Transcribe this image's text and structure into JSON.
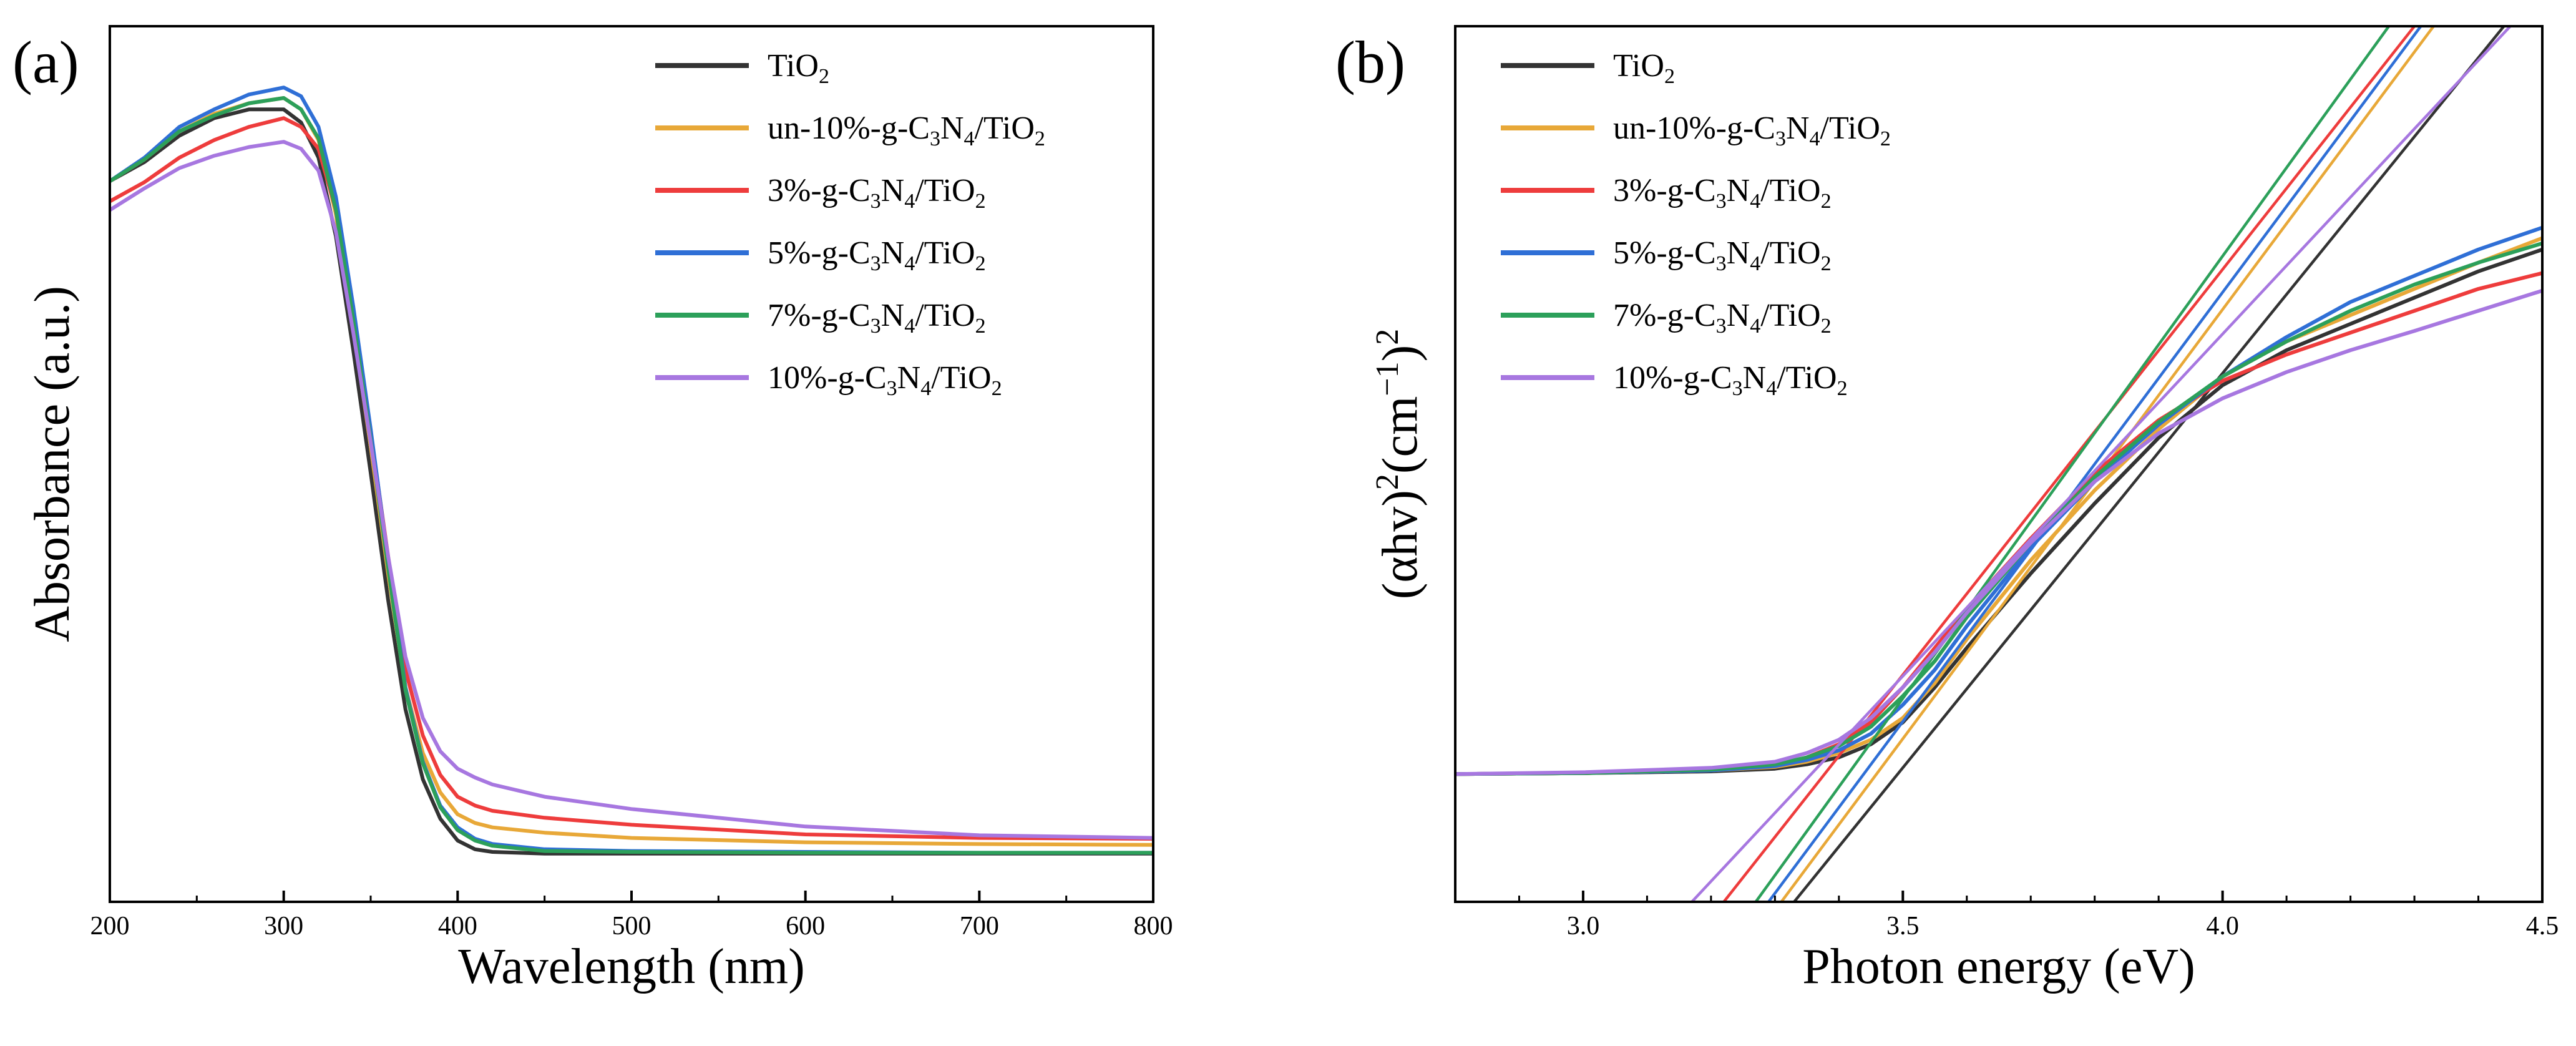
{
  "chart_data": [
    {
      "type": "line",
      "panel_label": "(a)",
      "title": "",
      "xlabel": "Wavelength (nm)",
      "ylabel": "Absorbance (a.u.)",
      "xlim": [
        200,
        800
      ],
      "ylim": [
        0,
        1.0
      ],
      "xticks": [
        200,
        300,
        400,
        500,
        600,
        700,
        800
      ],
      "yticks_shown": false,
      "legend_position": "top-right",
      "series": [
        {
          "name": "TiO2",
          "label": {
            "pre": "TiO",
            "sub": "2",
            "post": ""
          },
          "color": "#333333",
          "x": [
            200,
            220,
            240,
            260,
            280,
            300,
            310,
            320,
            330,
            340,
            350,
            360,
            370,
            380,
            390,
            400,
            410,
            420,
            450,
            500,
            600,
            700,
            800
          ],
          "y": [
            0.823,
            0.845,
            0.875,
            0.895,
            0.905,
            0.905,
            0.89,
            0.85,
            0.76,
            0.63,
            0.49,
            0.345,
            0.22,
            0.14,
            0.095,
            0.07,
            0.06,
            0.057,
            0.055,
            0.055,
            0.055,
            0.055,
            0.055
          ]
        },
        {
          "name": "un-10%-g-C3N4/TiO2",
          "label": {
            "pre": "un-10%-g-C",
            "sub": "3",
            "mid": "N",
            "sub2": "4",
            "post": "/TiO",
            "sub3": "2"
          },
          "color": "#e8a838",
          "x": [
            200,
            220,
            240,
            260,
            280,
            300,
            310,
            320,
            330,
            340,
            350,
            360,
            370,
            380,
            390,
            400,
            410,
            420,
            450,
            500,
            600,
            700,
            800
          ],
          "y": [
            0.823,
            0.848,
            0.88,
            0.9,
            0.912,
            0.918,
            0.905,
            0.87,
            0.785,
            0.655,
            0.52,
            0.375,
            0.245,
            0.17,
            0.125,
            0.1,
            0.09,
            0.085,
            0.079,
            0.073,
            0.068,
            0.066,
            0.065
          ]
        },
        {
          "name": "3%-g-C3N4/TiO2",
          "label": {
            "pre": "3%-g-C",
            "sub": "3",
            "mid": "N",
            "sub2": "4",
            "post": "/TiO",
            "sub3": "2"
          },
          "color": "#ee3c3c",
          "x": [
            200,
            220,
            240,
            260,
            280,
            300,
            310,
            320,
            330,
            340,
            350,
            360,
            370,
            380,
            390,
            400,
            410,
            420,
            450,
            500,
            600,
            700,
            800
          ],
          "y": [
            0.8,
            0.822,
            0.85,
            0.87,
            0.885,
            0.895,
            0.885,
            0.86,
            0.79,
            0.67,
            0.535,
            0.395,
            0.265,
            0.19,
            0.145,
            0.12,
            0.11,
            0.104,
            0.096,
            0.088,
            0.077,
            0.073,
            0.072
          ]
        },
        {
          "name": "5%-g-C3N4/TiO2",
          "label": {
            "pre": "5%-g-C",
            "sub": "3",
            "mid": "N",
            "sub2": "4",
            "post": "/TiO",
            "sub3": "2"
          },
          "color": "#2f6fd6",
          "x": [
            200,
            220,
            240,
            260,
            280,
            300,
            310,
            320,
            330,
            340,
            350,
            360,
            370,
            380,
            390,
            400,
            410,
            420,
            450,
            500,
            600,
            700,
            800
          ],
          "y": [
            0.823,
            0.85,
            0.885,
            0.905,
            0.922,
            0.93,
            0.92,
            0.885,
            0.805,
            0.68,
            0.54,
            0.39,
            0.245,
            0.16,
            0.11,
            0.085,
            0.072,
            0.066,
            0.06,
            0.058,
            0.057,
            0.056,
            0.056
          ]
        },
        {
          "name": "7%-g-C3N4/TiO2",
          "label": {
            "pre": "7%-g-C",
            "sub": "3",
            "mid": "N",
            "sub2": "4",
            "post": "/TiO",
            "sub3": "2"
          },
          "color": "#2ca05a",
          "x": [
            200,
            220,
            240,
            260,
            280,
            300,
            310,
            320,
            330,
            340,
            350,
            360,
            370,
            380,
            390,
            400,
            410,
            420,
            450,
            500,
            600,
            700,
            800
          ],
          "y": [
            0.823,
            0.848,
            0.88,
            0.898,
            0.912,
            0.918,
            0.905,
            0.872,
            0.79,
            0.665,
            0.528,
            0.382,
            0.242,
            0.158,
            0.108,
            0.082,
            0.07,
            0.064,
            0.058,
            0.057,
            0.056,
            0.056,
            0.056
          ]
        },
        {
          "name": "10%-g-C3N4/TiO2",
          "label": {
            "pre": "10%-g-C",
            "sub": "3",
            "mid": "N",
            "sub2": "4",
            "post": "/TiO",
            "sub3": "2"
          },
          "color": "#a777e0",
          "x": [
            200,
            220,
            240,
            260,
            280,
            300,
            310,
            320,
            330,
            340,
            350,
            360,
            370,
            380,
            390,
            400,
            410,
            420,
            450,
            500,
            600,
            700,
            800
          ],
          "y": [
            0.79,
            0.815,
            0.838,
            0.852,
            0.862,
            0.868,
            0.86,
            0.835,
            0.765,
            0.65,
            0.525,
            0.395,
            0.28,
            0.21,
            0.172,
            0.152,
            0.142,
            0.134,
            0.12,
            0.106,
            0.086,
            0.076,
            0.073
          ]
        }
      ]
    },
    {
      "type": "line",
      "panel_label": "(b)",
      "title": "",
      "xlabel": "Photon energy (eV)",
      "ylabel": {
        "pre": "(αhv)",
        "sup1": "2",
        "mid": "(cm",
        "sup2": "−1",
        "post": ")",
        "sup3": "2"
      },
      "xlim": [
        2.8,
        4.5
      ],
      "ylim": [
        0,
        1.0
      ],
      "xticks": [
        3.0,
        3.5,
        4.0,
        4.5
      ],
      "yticks_shown": false,
      "legend_position": "top-left",
      "series": [
        {
          "name": "TiO2",
          "label": {
            "pre": "TiO",
            "sub": "2",
            "post": ""
          },
          "color": "#333333",
          "x": [
            2.8,
            3.0,
            3.2,
            3.3,
            3.35,
            3.4,
            3.45,
            3.5,
            3.55,
            3.6,
            3.7,
            3.8,
            3.9,
            4.0,
            4.1,
            4.2,
            4.3,
            4.4,
            4.5
          ],
          "y": [
            0.146,
            0.147,
            0.149,
            0.152,
            0.157,
            0.165,
            0.18,
            0.205,
            0.245,
            0.29,
            0.375,
            0.455,
            0.53,
            0.59,
            0.63,
            0.66,
            0.69,
            0.72,
            0.745
          ],
          "tangent": {
            "x": [
              3.33,
              4.44
            ],
            "y": [
              0.0,
              1.0
            ]
          }
        },
        {
          "name": "un-10%-g-C3N4/TiO2",
          "label": {
            "pre": "un-10%-g-C",
            "sub": "3",
            "mid": "N",
            "sub2": "4",
            "post": "/TiO",
            "sub3": "2"
          },
          "color": "#e8a838",
          "x": [
            2.8,
            3.0,
            3.2,
            3.3,
            3.35,
            3.4,
            3.45,
            3.5,
            3.55,
            3.6,
            3.7,
            3.8,
            3.9,
            4.0,
            4.1,
            4.2,
            4.3,
            4.4,
            4.5
          ],
          "y": [
            0.146,
            0.147,
            0.15,
            0.154,
            0.16,
            0.17,
            0.185,
            0.21,
            0.25,
            0.3,
            0.39,
            0.47,
            0.54,
            0.6,
            0.64,
            0.67,
            0.7,
            0.73,
            0.758
          ],
          "tangent": {
            "x": [
              3.31,
              4.33
            ],
            "y": [
              0.0,
              1.0
            ]
          }
        },
        {
          "name": "3%-g-C3N4/TiO2",
          "label": {
            "pre": "3%-g-C",
            "sub": "3",
            "mid": "N",
            "sub2": "4",
            "post": "/TiO",
            "sub3": "2"
          },
          "color": "#ee3c3c",
          "x": [
            2.8,
            3.0,
            3.2,
            3.3,
            3.35,
            3.4,
            3.45,
            3.5,
            3.55,
            3.6,
            3.7,
            3.8,
            3.9,
            4.0,
            4.1,
            4.2,
            4.3,
            4.4,
            4.5
          ],
          "y": [
            0.146,
            0.147,
            0.15,
            0.156,
            0.165,
            0.18,
            0.205,
            0.245,
            0.29,
            0.335,
            0.415,
            0.49,
            0.55,
            0.595,
            0.625,
            0.65,
            0.675,
            0.7,
            0.718
          ],
          "tangent": {
            "x": [
              3.22,
              4.3
            ],
            "y": [
              0.0,
              1.0
            ]
          }
        },
        {
          "name": "5%-g-C3N4/TiO2",
          "label": {
            "pre": "5%-g-C",
            "sub": "3",
            "mid": "N",
            "sub2": "4",
            "post": "/TiO",
            "sub3": "2"
          },
          "color": "#2f6fd6",
          "x": [
            2.8,
            3.0,
            3.2,
            3.3,
            3.35,
            3.4,
            3.45,
            3.5,
            3.55,
            3.6,
            3.7,
            3.8,
            3.9,
            4.0,
            4.1,
            4.2,
            4.3,
            4.4,
            4.5
          ],
          "y": [
            0.146,
            0.147,
            0.15,
            0.155,
            0.162,
            0.173,
            0.192,
            0.225,
            0.265,
            0.315,
            0.405,
            0.48,
            0.545,
            0.6,
            0.645,
            0.685,
            0.715,
            0.745,
            0.77
          ],
          "tangent": {
            "x": [
              3.29,
              4.31
            ],
            "y": [
              0.0,
              1.0
            ]
          }
        },
        {
          "name": "7%-g-C3N4/TiO2",
          "label": {
            "pre": "7%-g-C",
            "sub": "3",
            "mid": "N",
            "sub2": "4",
            "post": "/TiO",
            "sub3": "2"
          },
          "color": "#2ca05a",
          "x": [
            2.8,
            3.0,
            3.2,
            3.3,
            3.35,
            3.4,
            3.45,
            3.5,
            3.55,
            3.6,
            3.7,
            3.8,
            3.9,
            4.0,
            4.1,
            4.2,
            4.3,
            4.4,
            4.5
          ],
          "y": [
            0.146,
            0.147,
            0.151,
            0.157,
            0.165,
            0.178,
            0.2,
            0.235,
            0.275,
            0.325,
            0.41,
            0.485,
            0.548,
            0.6,
            0.64,
            0.675,
            0.705,
            0.73,
            0.752
          ],
          "tangent": {
            "x": [
              3.27,
              4.26
            ],
            "y": [
              0.0,
              1.0
            ]
          }
        },
        {
          "name": "10%-g-C3N4/TiO2",
          "label": {
            "pre": "10%-g-C",
            "sub": "3",
            "mid": "N",
            "sub2": "4",
            "post": "/TiO",
            "sub3": "2"
          },
          "color": "#a777e0",
          "x": [
            2.8,
            3.0,
            3.2,
            3.3,
            3.35,
            3.4,
            3.45,
            3.5,
            3.55,
            3.6,
            3.7,
            3.8,
            3.9,
            4.0,
            4.1,
            4.2,
            4.3,
            4.4,
            4.5
          ],
          "y": [
            0.146,
            0.148,
            0.153,
            0.16,
            0.17,
            0.185,
            0.21,
            0.245,
            0.285,
            0.33,
            0.41,
            0.48,
            0.535,
            0.575,
            0.605,
            0.63,
            0.652,
            0.675,
            0.698
          ],
          "tangent": {
            "x": [
              3.17,
              4.45
            ],
            "y": [
              0.0,
              1.0
            ]
          }
        }
      ]
    }
  ]
}
